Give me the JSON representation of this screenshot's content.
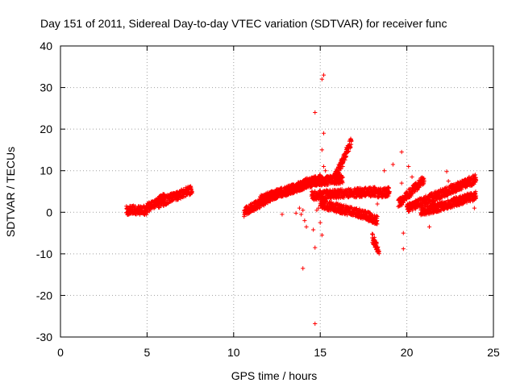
{
  "chart_data": {
    "type": "scatter",
    "title": "Day 151 of 2011, Sidereal Day-to-day VTEC variation (SDTVAR) for receiver func",
    "xlabel": "GPS time / hours",
    "ylabel": "SDTVAR / TECUs",
    "xlim": [
      0,
      25
    ],
    "ylim": [
      -30,
      40
    ],
    "xticks": [
      0,
      5,
      10,
      15,
      20,
      25
    ],
    "yticks": [
      -30,
      -20,
      -10,
      0,
      10,
      20,
      30,
      40
    ],
    "grid": true,
    "marker": "+",
    "color": "#ff0000",
    "series": [
      {
        "name": "SDTVAR",
        "bands": [
          {
            "x": [
              3.8,
              5.0
            ],
            "y": [
              0.5,
              0.5
            ]
          },
          {
            "x": [
              5.0,
              6.0
            ],
            "y": [
              1.0,
              3.5
            ]
          },
          {
            "x": [
              5.6,
              7.0
            ],
            "y": [
              2.0,
              4.5
            ]
          },
          {
            "x": [
              7.0,
              7.6
            ],
            "y": [
              4.5,
              5.5
            ]
          },
          {
            "x": [
              10.6,
              12.5
            ],
            "y": [
              0.0,
              4.5
            ]
          },
          {
            "x": [
              11.5,
              14.0
            ],
            "y": [
              3.0,
              6.5
            ]
          },
          {
            "x": [
              13.0,
              15.0
            ],
            "y": [
              5.0,
              8.0
            ]
          },
          {
            "x": [
              14.0,
              16.3
            ],
            "y": [
              7.0,
              8.0
            ]
          },
          {
            "x": [
              15.8,
              16.8
            ],
            "y": [
              8.0,
              17.0
            ]
          },
          {
            "x": [
              14.5,
              18.3
            ],
            "y": [
              4.0,
              5.0
            ]
          },
          {
            "x": [
              15.0,
              17.5
            ],
            "y": [
              2.0,
              -0.5
            ]
          },
          {
            "x": [
              17.5,
              18.3
            ],
            "y": [
              -0.5,
              -2.0
            ]
          },
          {
            "x": [
              18.0,
              18.4
            ],
            "y": [
              -6.0,
              -9.5
            ]
          },
          {
            "x": [
              18.3,
              19.0
            ],
            "y": [
              4.5,
              5.0
            ]
          },
          {
            "x": [
              19.5,
              21.0
            ],
            "y": [
              2.0,
              8.0
            ]
          },
          {
            "x": [
              20.0,
              24.0
            ],
            "y": [
              1.0,
              8.0
            ]
          },
          {
            "x": [
              20.8,
              24.0
            ],
            "y": [
              0.0,
              4.0
            ]
          }
        ],
        "points": [
          [
            13.8,
            1.0
          ],
          [
            13.9,
            -0.5
          ],
          [
            14.0,
            0.5
          ],
          [
            14.1,
            -2.0
          ],
          [
            14.2,
            -3.5
          ],
          [
            14.0,
            -13.5
          ],
          [
            14.6,
            -4.2
          ],
          [
            14.7,
            -8.5
          ],
          [
            14.7,
            -26.8
          ],
          [
            14.7,
            24.0
          ],
          [
            14.8,
            0.5
          ],
          [
            14.9,
            1.0
          ],
          [
            15.0,
            -2.5
          ],
          [
            15.1,
            15.0
          ],
          [
            15.2,
            19.0
          ],
          [
            15.1,
            32.0
          ],
          [
            15.2,
            33.0
          ],
          [
            15.2,
            11.0
          ],
          [
            15.1,
            -5.5
          ],
          [
            15.3,
            10.0
          ],
          [
            19.7,
            14.5
          ],
          [
            19.8,
            -5.0
          ],
          [
            19.8,
            -8.8
          ],
          [
            19.7,
            7.0
          ],
          [
            22.3,
            9.8
          ],
          [
            22.4,
            7.5
          ],
          [
            21.3,
            -3.5
          ],
          [
            11.3,
            1.2
          ],
          [
            12.8,
            -0.5
          ],
          [
            13.6,
            -0.2
          ],
          [
            16.3,
            11.0
          ],
          [
            16.5,
            13.5
          ],
          [
            18.7,
            10.0
          ],
          [
            19.2,
            11.5
          ],
          [
            20.1,
            11.0
          ],
          [
            20.3,
            8.5
          ],
          [
            18.3,
            2.0
          ],
          [
            23.6,
            8.5
          ],
          [
            23.9,
            1.0
          ]
        ]
      }
    ]
  }
}
